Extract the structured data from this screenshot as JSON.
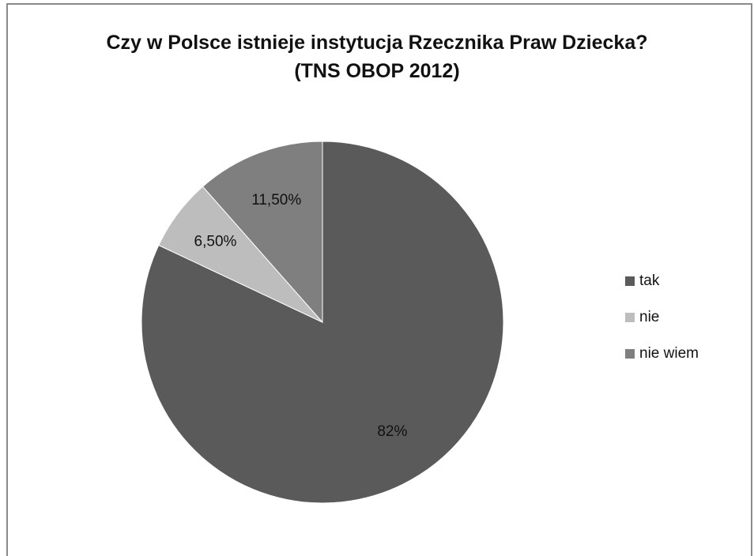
{
  "chart_data": {
    "type": "pie",
    "title": "Czy w Polsce istnieje instytucja Rzecznika Praw Dziecka?",
    "subtitle": "(TNS OBOP 2012)",
    "slices": [
      {
        "name": "tak",
        "value": 82,
        "label": "82%",
        "color": "#5a5a5a"
      },
      {
        "name": "nie",
        "value": 6.5,
        "label": "6,50%",
        "color": "#bdbdbd"
      },
      {
        "name": "nie wiem",
        "value": 11.5,
        "label": "11,50%",
        "color": "#7f7f7f"
      }
    ],
    "legend_position": "right",
    "start_angle": "12 o'clock",
    "direction": "clockwise"
  }
}
